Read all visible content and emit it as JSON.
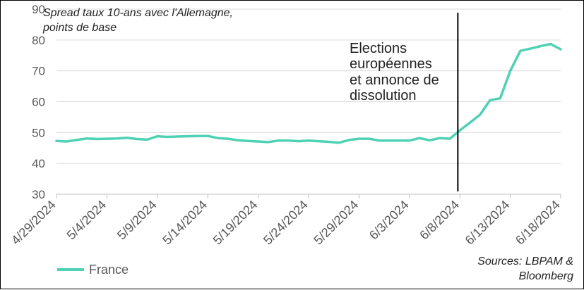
{
  "chart_data": {
    "type": "line",
    "title": "Spread taux 10-ans avec l'Allemagne, points de base",
    "title_lines": [
      "Spread taux 10-ans avec l'Allemagne,",
      "points de base"
    ],
    "ylim": [
      30,
      90
    ],
    "yticks": [
      30,
      40,
      50,
      60,
      70,
      80,
      90
    ],
    "x_tick_labels": [
      "4/29/2024",
      "5/4/2024",
      "5/9/2024",
      "5/14/2024",
      "5/19/2024",
      "5/24/2024",
      "5/29/2024",
      "6/3/2024",
      "6/8/2024",
      "6/13/2024",
      "6/18/2024"
    ],
    "x_start_day": 0,
    "x_end_day": 50,
    "series": [
      {
        "name": "France",
        "color": "#4fd1b5",
        "x": [
          0,
          1,
          2,
          3,
          4,
          5,
          6,
          7,
          8,
          9,
          10,
          11,
          12,
          13,
          14,
          15,
          16,
          17,
          18,
          19,
          20,
          21,
          22,
          23,
          24,
          25,
          26,
          27,
          28,
          29,
          30,
          31,
          32,
          33,
          34,
          35,
          36,
          37,
          38,
          39,
          40,
          41,
          42,
          43,
          44,
          45,
          46,
          47,
          48,
          49,
          50
        ],
        "values": [
          47.3,
          47.1,
          47.6,
          48.1,
          47.9,
          48.0,
          48.1,
          48.3,
          47.9,
          47.7,
          48.8,
          48.6,
          48.7,
          48.8,
          48.9,
          48.9,
          48.2,
          48.0,
          47.5,
          47.3,
          47.1,
          46.9,
          47.4,
          47.4,
          47.2,
          47.4,
          47.2,
          47.0,
          46.7,
          47.6,
          48.0,
          48.0,
          47.4,
          47.4,
          47.4,
          47.4,
          48.2,
          47.5,
          48.2,
          48.0,
          50.7,
          53.2,
          55.8,
          60.5,
          61.1,
          70.0,
          76.5,
          77.2,
          78.0,
          78.7,
          77.0
        ]
      }
    ],
    "annotation": {
      "lines": [
        "Elections",
        "européennes",
        "et annonce de",
        "dissolution"
      ],
      "x_day": 39.8
    },
    "legend": "bottom-left",
    "source_lines": [
      "Sources: LBPAM &",
      "Bloomberg"
    ]
  }
}
